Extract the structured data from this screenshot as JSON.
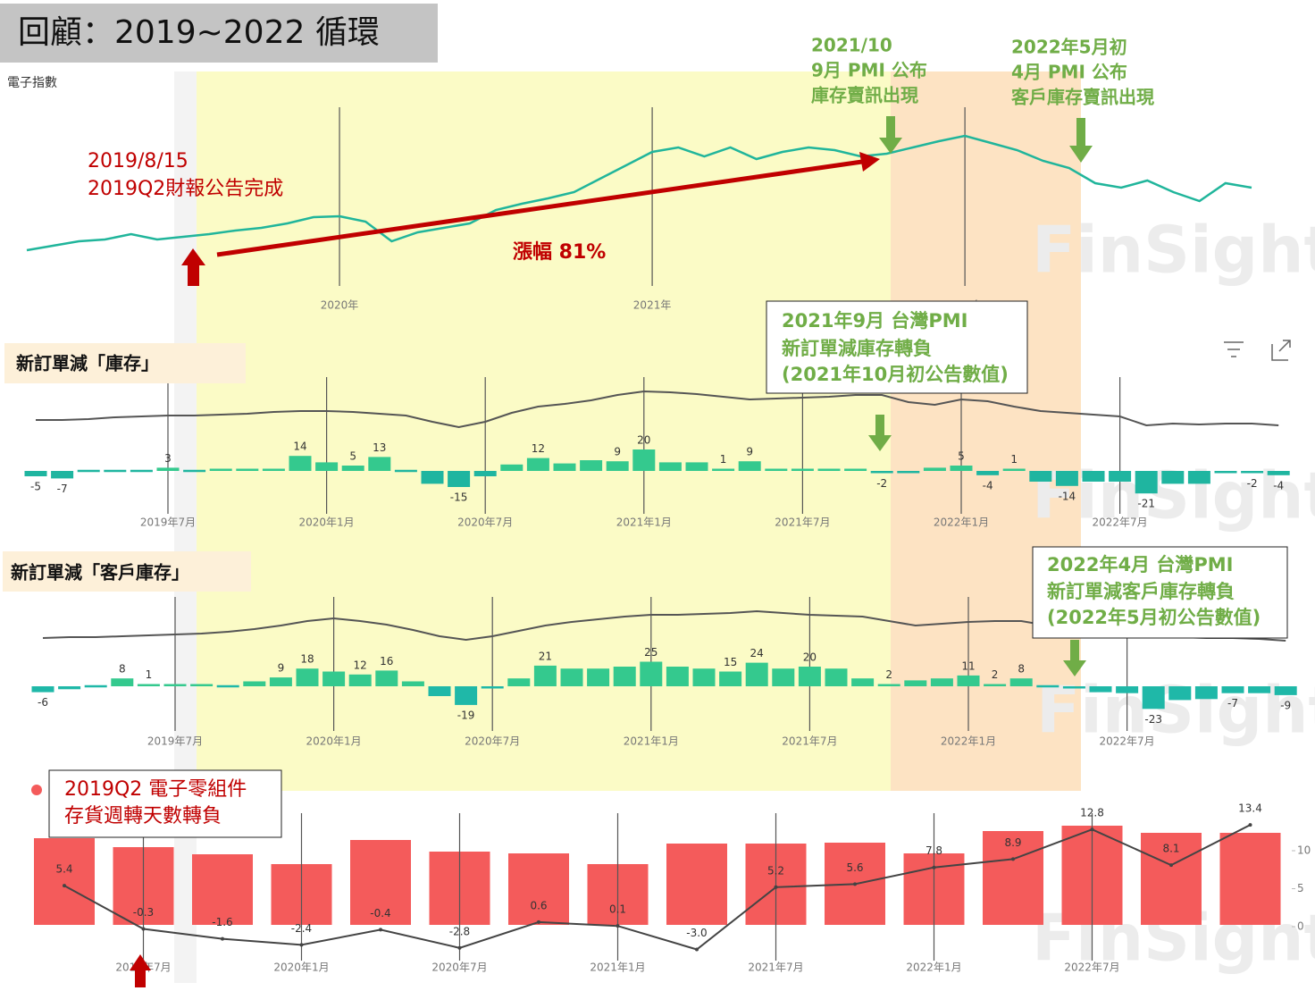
{
  "title": "回顧：2019~2022 循環",
  "watermark": "FinSight",
  "annotations": {
    "report_date": [
      "2019/8/15",
      "2019Q2財報公告完成"
    ],
    "gain": "漲幅 81%",
    "pmi_2021": [
      "2021/10",
      "9月 PMI 公布",
      "庫存賣訊出現"
    ],
    "pmi_2022": [
      "2022年5月初",
      "4月 PMI 公布",
      "客戶庫存賣訊出現"
    ],
    "box_2021": [
      "2021年9月 台灣PMI",
      "新訂單減庫存轉負",
      "(2021年10月初公告數值)"
    ],
    "box_2022": [
      "2022年4月 台灣PMI",
      "新訂單減客戶庫存轉負",
      "(2022年5月初公告數值)"
    ],
    "box_2019": [
      "2019Q2 電子零組件",
      "存貨週轉天數轉負"
    ]
  },
  "chart_data": [
    {
      "type": "line",
      "title": "電子指數",
      "color": "#20b59b",
      "ylim": [
        0,
        200
      ],
      "categories": [
        null,
        null,
        null,
        null,
        null,
        null,
        null,
        null,
        null,
        null,
        null,
        null,
        "2020年",
        null,
        null,
        null,
        null,
        null,
        null,
        null,
        null,
        null,
        null,
        null,
        "2021年",
        null,
        null,
        null,
        null,
        null,
        null,
        null,
        null,
        null,
        null,
        null,
        "2022年",
        null,
        null,
        null,
        null,
        null,
        null,
        null,
        null,
        null,
        null,
        null
      ],
      "values": [
        20,
        25,
        30,
        32,
        38,
        32,
        35,
        38,
        42,
        45,
        50,
        57,
        58,
        52,
        30,
        40,
        45,
        50,
        65,
        72,
        78,
        85,
        100,
        115,
        130,
        135,
        125,
        135,
        122,
        130,
        135,
        132,
        125,
        128,
        135,
        142,
        148,
        140,
        132,
        120,
        112,
        95,
        90,
        98,
        85,
        75,
        95,
        90
      ]
    },
    {
      "type": "bar",
      "title": "新訂單減「庫存」",
      "colors": {
        "positive": "#34c98e",
        "negative": "#1fb5a0",
        "line": "#555555"
      },
      "ylim": [
        -60,
        60
      ],
      "line_ylim": [
        0,
        100
      ],
      "categories": [
        null,
        null,
        null,
        null,
        null,
        "2019年7月",
        null,
        null,
        null,
        null,
        null,
        "2020年1月",
        null,
        null,
        null,
        null,
        null,
        "2020年7月",
        null,
        null,
        null,
        null,
        null,
        "2021年1月",
        null,
        null,
        null,
        null,
        null,
        "2021年7月",
        null,
        null,
        null,
        null,
        null,
        "2022年1月",
        null,
        null,
        null,
        null,
        null,
        "2022年7月",
        null,
        null,
        null,
        null,
        null,
        null
      ],
      "values": [
        -5,
        -7,
        0,
        0,
        0,
        3,
        0,
        1,
        1,
        2,
        14,
        8,
        5,
        13,
        0,
        -12,
        -15,
        -5,
        6,
        12,
        7,
        10,
        9,
        20,
        8,
        8,
        1,
        9,
        2,
        2,
        2,
        2,
        -2,
        -1,
        3,
        5,
        -4,
        1,
        -10,
        -14,
        -10,
        -10,
        -21,
        -12,
        -12,
        -2,
        -2,
        -4
      ],
      "value_labels": [
        "-5",
        "-7",
        null,
        null,
        null,
        "3",
        null,
        null,
        null,
        null,
        "14",
        null,
        "5",
        "13",
        null,
        null,
        "-15",
        null,
        null,
        "12",
        null,
        null,
        "9",
        "20",
        null,
        null,
        "1",
        "9",
        null,
        null,
        null,
        null,
        "-2",
        null,
        null,
        "5",
        "-4",
        "1",
        null,
        "-14",
        null,
        null,
        "-21",
        null,
        null,
        null,
        "-2",
        "-4"
      ],
      "line_values": [
        30,
        30,
        31,
        33,
        34,
        35,
        35,
        36,
        37,
        39,
        40,
        40,
        39,
        37,
        35,
        28,
        22,
        28,
        38,
        45,
        48,
        52,
        58,
        62,
        61,
        59,
        56,
        53,
        54,
        55,
        56,
        58,
        58,
        50,
        47,
        53,
        51,
        45,
        40,
        38,
        36,
        34,
        24,
        26,
        25,
        26,
        26,
        24
      ]
    },
    {
      "type": "bar",
      "title": "新訂單減「客戶庫存」",
      "colors": {
        "positive": "#34c98e",
        "negative": "#1fb8a8",
        "line": "#555555"
      },
      "ylim": [
        -60,
        60
      ],
      "line_ylim": [
        0,
        100
      ],
      "categories": [
        null,
        null,
        null,
        null,
        null,
        "2019年7月",
        null,
        null,
        null,
        null,
        null,
        "2020年1月",
        null,
        null,
        null,
        null,
        null,
        "2020年7月",
        null,
        null,
        null,
        null,
        null,
        "2021年1月",
        null,
        null,
        null,
        null,
        null,
        "2021年7月",
        null,
        null,
        null,
        null,
        null,
        "2022年1月",
        null,
        null,
        null,
        null,
        null,
        "2022年7月",
        null,
        null,
        null,
        null,
        null,
        null
      ],
      "values": [
        -6,
        -3,
        0,
        8,
        1,
        1,
        1,
        0,
        5,
        9,
        18,
        15,
        12,
        16,
        5,
        -10,
        -19,
        -1,
        8,
        21,
        18,
        18,
        20,
        25,
        20,
        18,
        15,
        24,
        18,
        20,
        18,
        8,
        2,
        6,
        8,
        11,
        2,
        8,
        0,
        -1,
        -6,
        -7,
        -23,
        -14,
        -13,
        -7,
        -7,
        -9
      ],
      "value_labels": [
        "-6",
        null,
        null,
        "8",
        "1",
        null,
        null,
        null,
        null,
        "9",
        "18",
        null,
        "12",
        "16",
        null,
        null,
        "-19",
        null,
        null,
        "21",
        null,
        null,
        null,
        "25",
        null,
        null,
        "15",
        "24",
        null,
        "20",
        null,
        null,
        "2",
        null,
        null,
        "11",
        "2",
        "8",
        null,
        null,
        null,
        null,
        "-23",
        null,
        null,
        "-7",
        null,
        "-9"
      ],
      "line_values": [
        36,
        37,
        37,
        38,
        39,
        40,
        41,
        43,
        46,
        50,
        55,
        58,
        55,
        51,
        45,
        38,
        34,
        38,
        44,
        50,
        54,
        57,
        60,
        62,
        62,
        63,
        64,
        66,
        64,
        62,
        61,
        60,
        55,
        50,
        52,
        54,
        55,
        55,
        50,
        46,
        42,
        40,
        38,
        37,
        36,
        36,
        35,
        33
      ]
    },
    {
      "type": "combo",
      "colors": {
        "bar": "#f45b5b",
        "line": "#444444"
      },
      "ylim": [
        -5,
        15
      ],
      "yticks": [
        0,
        5,
        10
      ],
      "bar_ylim": [
        0,
        120
      ],
      "categories": [
        null,
        "2019年7月",
        null,
        "2020年1月",
        null,
        "2020年7月",
        null,
        "2021年1月",
        null,
        "2021年7月",
        null,
        "2022年1月",
        null,
        "2022年7月",
        null,
        null
      ],
      "bar_values": [
        97,
        87,
        79,
        68,
        95,
        82,
        80,
        68,
        91,
        91,
        92,
        80,
        105,
        111,
        103,
        103
      ],
      "values": [
        5.4,
        -0.3,
        -1.6,
        -2.4,
        -0.4,
        -2.8,
        0.6,
        0.1,
        -3.0,
        5.2,
        5.6,
        7.8,
        8.9,
        12.8,
        8.1,
        13.4
      ],
      "value_labels": [
        "5.4",
        "-0.3",
        "-1.6",
        "-2.4",
        "-0.4",
        "-2.8",
        "0.6",
        "0.1",
        "-3.0",
        "5.2",
        "5.6",
        "7.8",
        "8.9",
        "12.8",
        "8.1",
        "13.4"
      ]
    }
  ]
}
